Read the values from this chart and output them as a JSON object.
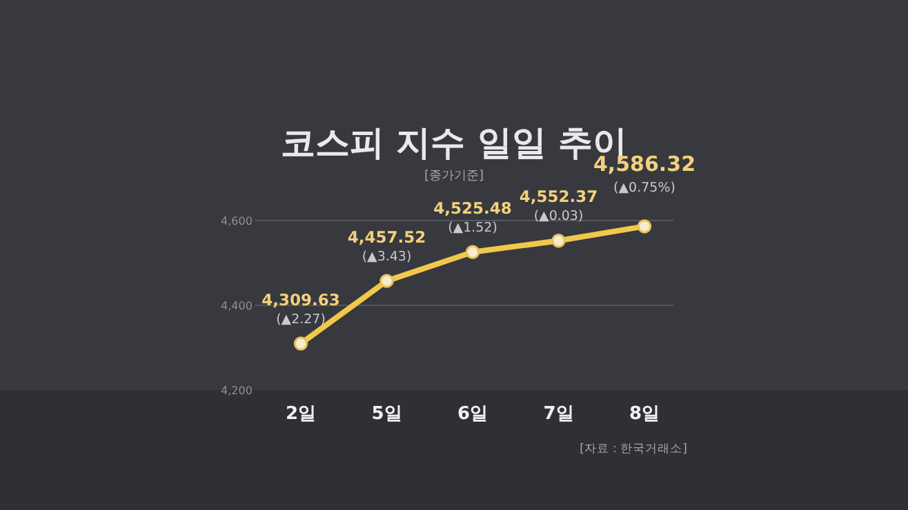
{
  "chart_data": {
    "type": "line",
    "title": "코스피 지수 일일 추이",
    "subtitle": "[종가기준]",
    "categories": [
      "2일",
      "5일",
      "6일",
      "7일",
      "8일"
    ],
    "series": [
      {
        "color": "#f2c84b",
        "values": [
          4309.63,
          4457.52,
          4525.48,
          4552.37,
          4586.32
        ],
        "value_labels": [
          "4,309.63",
          "4,457.52",
          "4,525.48",
          "4,552.37",
          "4,586.32"
        ]
      }
    ],
    "ylim": [
      4200,
      4600
    ],
    "yticks": [
      {
        "value": 4200,
        "label": "4,200"
      },
      {
        "value": 4400,
        "label": "4,400"
      },
      {
        "value": 4600,
        "label": "4,600"
      }
    ],
    "grid": "y",
    "marker": "circle",
    "line_style": "solid",
    "annotations": [
      {
        "text": "(▲2.27)",
        "x": "2일",
        "y": 4309.63
      },
      {
        "text": "(▲3.43)",
        "x": "5일",
        "y": 4457.52
      },
      {
        "text": "(▲1.52)",
        "x": "6일",
        "y": 4525.48
      },
      {
        "text": "(▲0.03)",
        "x": "7일",
        "y": 4552.37
      },
      {
        "text": "(▲0.75%)",
        "x": "8일",
        "y": 4586.32
      },
      "[자료 : 한국거래소]"
    ]
  }
}
